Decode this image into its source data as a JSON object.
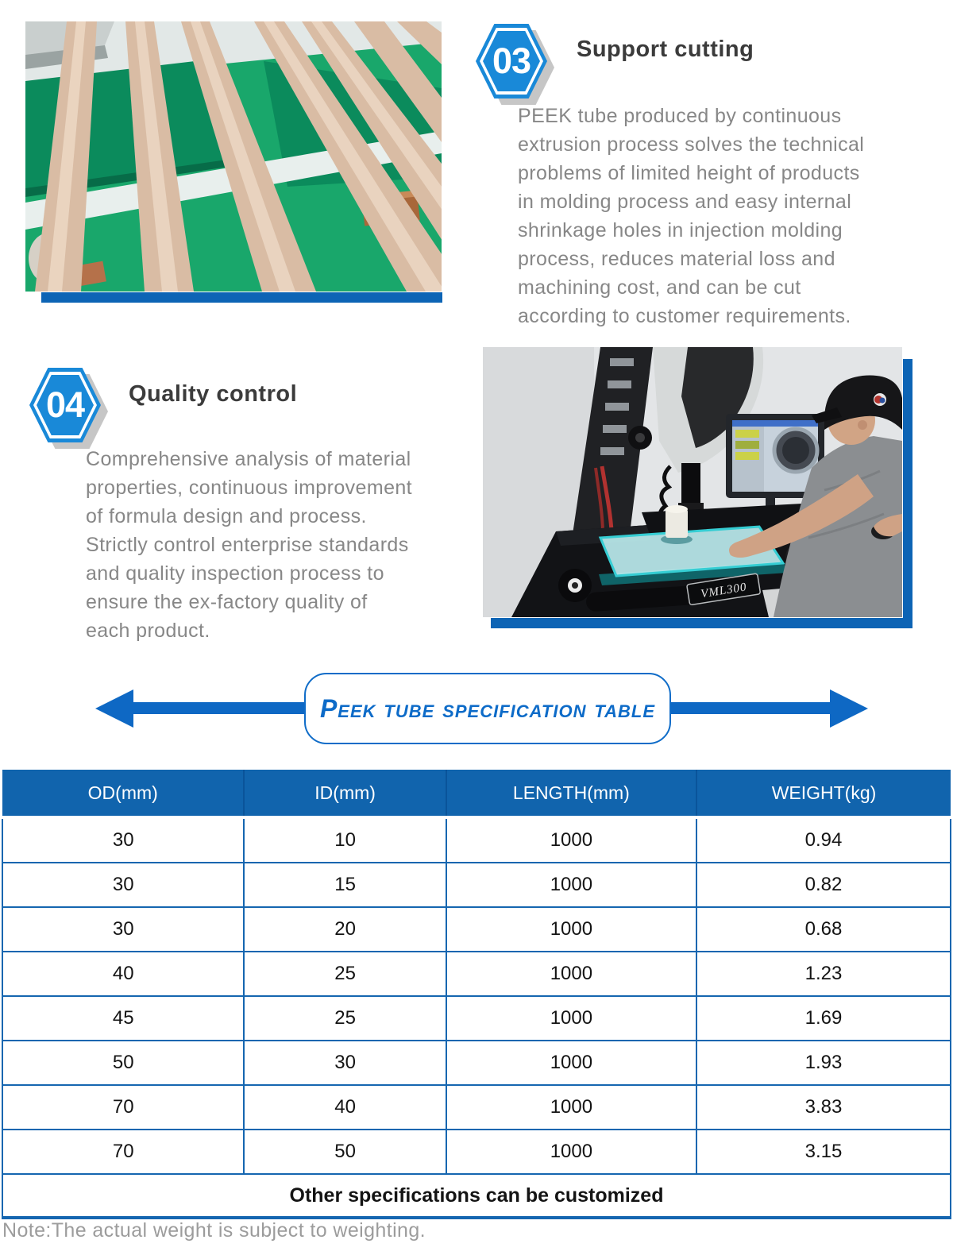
{
  "sections": [
    {
      "badge": "03",
      "title": "Support cutting",
      "body_lines": [
        "PEEK tube produced by continuous",
        "extrusion process solves the technical",
        "problems of limited height of products",
        "in molding process and easy internal",
        "shrinkage holes in injection molding",
        "process, reduces material loss and",
        "machining cost, and can be cut",
        "according to customer requirements."
      ]
    },
    {
      "badge": "04",
      "title": "Quality control",
      "body_lines": [
        "Comprehensive analysis of material",
        "properties, continuous improvement",
        "of formula design and process.",
        "Strictly control enterprise standards",
        "and quality inspection process to",
        "ensure the ex-factory quality of",
        "each product."
      ]
    }
  ],
  "banner": {
    "title": "Peek tube specification table"
  },
  "spec_table": {
    "columns": [
      "OD(mm)",
      "ID(mm)",
      "LENGTH(mm)",
      "WEIGHT(kg)"
    ],
    "rows": [
      [
        "30",
        "10",
        "1000",
        "0.94"
      ],
      [
        "30",
        "15",
        "1000",
        "0.82"
      ],
      [
        "30",
        "20",
        "1000",
        "0.68"
      ],
      [
        "40",
        "25",
        "1000",
        "1.23"
      ],
      [
        "45",
        "25",
        "1000",
        "1.69"
      ],
      [
        "50",
        "30",
        "1000",
        "1.93"
      ],
      [
        "70",
        "40",
        "1000",
        "3.83"
      ],
      [
        "70",
        "50",
        "1000",
        "3.15"
      ]
    ],
    "footer": "Other specifications can be customized"
  },
  "note": "Note:The actual weight is subject to weighting.",
  "photos": {
    "quality_machine_label": "VML300"
  },
  "colors": {
    "badge_blue": "#1989d8",
    "accent_bar_blue": "#0d64b5",
    "arrow_blue": "#0e68c4",
    "banner_blue": "#0f6cc8",
    "table_header_blue": "#1164ad",
    "table_border_blue": "#1566b0",
    "body_text_gray": "#878787",
    "note_gray": "#9c9c9c"
  }
}
